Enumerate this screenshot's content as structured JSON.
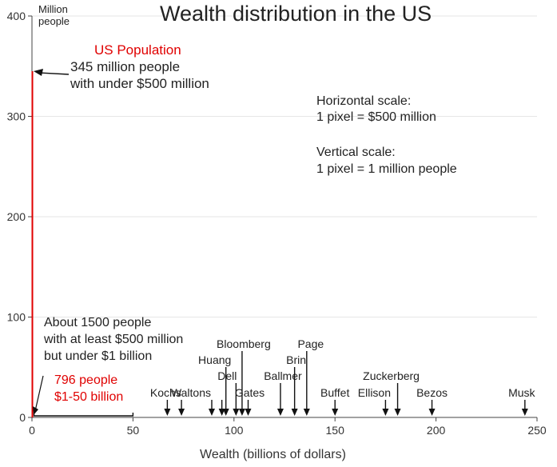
{
  "chart_data": {
    "type": "bar",
    "title": "Wealth distribution in the US",
    "xlabel": "Wealth (billions of dollars)",
    "ylabel": "Million people",
    "xlim": [
      0,
      250
    ],
    "ylim": [
      0,
      400
    ],
    "x_ticks": [
      "0",
      "50",
      "100",
      "150",
      "200",
      "250"
    ],
    "y_ticks": [
      "0",
      "100",
      "200",
      "300",
      "400"
    ],
    "population_bar": {
      "label": "US Population",
      "value_million": 345,
      "color": "#e00000"
    },
    "annotations": {
      "population_line1": "345 million people",
      "population_line2": "with under $500 million",
      "mid_line1": "About 1500 people",
      "mid_line2": "with at least $500 million",
      "mid_line3": "but under $1 billion",
      "low_line1": "796 people",
      "low_line2": "$1-50 billion",
      "hscale_line1": "Horizontal scale:",
      "hscale_line2": "1 pixel = $500 million",
      "vscale_line1": "Vertical scale:",
      "vscale_line2": "1 pixel = 1 million people"
    },
    "billionaires": [
      {
        "name": "Kochs",
        "wealth": 67
      },
      {
        "name": "",
        "wealth": 74
      },
      {
        "name": "Waltons",
        "wealth": 89
      },
      {
        "name": "",
        "wealth": 94
      },
      {
        "name": "Huang",
        "wealth": 96
      },
      {
        "name": "Dell",
        "wealth": 101
      },
      {
        "name": "Bloomberg",
        "wealth": 104
      },
      {
        "name": "Gates",
        "wealth": 107
      },
      {
        "name": "Ballmer",
        "wealth": 123
      },
      {
        "name": "Brin",
        "wealth": 130
      },
      {
        "name": "Page",
        "wealth": 136
      },
      {
        "name": "Buffet",
        "wealth": 150
      },
      {
        "name": "Ellison",
        "wealth": 175
      },
      {
        "name": "Zuckerberg",
        "wealth": 181
      },
      {
        "name": "Bezos",
        "wealth": 198
      },
      {
        "name": "Musk",
        "wealth": 244
      }
    ]
  }
}
